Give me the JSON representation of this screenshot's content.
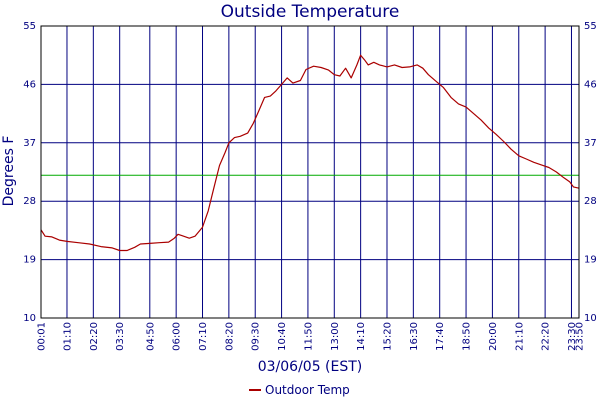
{
  "chart_data": {
    "type": "line",
    "title": "Outside Temperature",
    "xlabel": "03/06/05 (EST)",
    "ylabel": "Degrees F",
    "ylim": [
      10,
      55
    ],
    "yticks": [
      10,
      19,
      28,
      37,
      46,
      55
    ],
    "xlim_minutes": [
      1,
      1430
    ],
    "xticks": [
      {
        "label": "00:01",
        "minutes": 1
      },
      {
        "label": "01:10",
        "minutes": 70
      },
      {
        "label": "02:20",
        "minutes": 140
      },
      {
        "label": "03:30",
        "minutes": 210
      },
      {
        "label": "04:50",
        "minutes": 290
      },
      {
        "label": "06:00",
        "minutes": 360
      },
      {
        "label": "07:10",
        "minutes": 430
      },
      {
        "label": "08:20",
        "minutes": 500
      },
      {
        "label": "09:30",
        "minutes": 570
      },
      {
        "label": "10:40",
        "minutes": 640
      },
      {
        "label": "11:50",
        "minutes": 710
      },
      {
        "label": "13:00",
        "minutes": 780
      },
      {
        "label": "14:10",
        "minutes": 850
      },
      {
        "label": "15:20",
        "minutes": 920
      },
      {
        "label": "16:30",
        "minutes": 990
      },
      {
        "label": "17:40",
        "minutes": 1060
      },
      {
        "label": "18:50",
        "minutes": 1130
      },
      {
        "label": "20:00",
        "minutes": 1200
      },
      {
        "label": "21:10",
        "minutes": 1270
      },
      {
        "label": "22:20",
        "minutes": 1340
      },
      {
        "label": "23:30",
        "minutes": 1410
      },
      {
        "label": "23:50",
        "minutes": 1430
      }
    ],
    "reference_line": {
      "y": 32,
      "color": "#00aa00"
    },
    "grid": true,
    "legend_position": "bottom",
    "series": [
      {
        "name": "Outdoor Temp",
        "color": "#aa0000",
        "points": [
          [
            1,
            23.6
          ],
          [
            12,
            22.6
          ],
          [
            30,
            22.5
          ],
          [
            50,
            22.0
          ],
          [
            70,
            21.8
          ],
          [
            100,
            21.6
          ],
          [
            130,
            21.4
          ],
          [
            160,
            21.0
          ],
          [
            190,
            20.8
          ],
          [
            210,
            20.4
          ],
          [
            230,
            20.4
          ],
          [
            250,
            20.9
          ],
          [
            265,
            21.4
          ],
          [
            290,
            21.5
          ],
          [
            315,
            21.6
          ],
          [
            340,
            21.7
          ],
          [
            355,
            22.3
          ],
          [
            365,
            22.9
          ],
          [
            375,
            22.7
          ],
          [
            395,
            22.3
          ],
          [
            410,
            22.6
          ],
          [
            430,
            24.0
          ],
          [
            445,
            26.5
          ],
          [
            460,
            30.0
          ],
          [
            475,
            33.5
          ],
          [
            490,
            35.5
          ],
          [
            500,
            37.0
          ],
          [
            515,
            37.8
          ],
          [
            530,
            38.0
          ],
          [
            550,
            38.5
          ],
          [
            565,
            40.0
          ],
          [
            580,
            42.0
          ],
          [
            595,
            44.0
          ],
          [
            610,
            44.2
          ],
          [
            625,
            45.0
          ],
          [
            640,
            46.0
          ],
          [
            655,
            47.0
          ],
          [
            670,
            46.2
          ],
          [
            690,
            46.6
          ],
          [
            705,
            48.3
          ],
          [
            725,
            48.8
          ],
          [
            745,
            48.6
          ],
          [
            765,
            48.2
          ],
          [
            780,
            47.5
          ],
          [
            795,
            47.3
          ],
          [
            810,
            48.5
          ],
          [
            825,
            47.0
          ],
          [
            840,
            49.0
          ],
          [
            850,
            50.5
          ],
          [
            860,
            49.8
          ],
          [
            870,
            49.0
          ],
          [
            885,
            49.4
          ],
          [
            900,
            49.0
          ],
          [
            920,
            48.7
          ],
          [
            940,
            49.0
          ],
          [
            960,
            48.6
          ],
          [
            980,
            48.7
          ],
          [
            1000,
            49.0
          ],
          [
            1015,
            48.5
          ],
          [
            1030,
            47.5
          ],
          [
            1050,
            46.5
          ],
          [
            1070,
            45.5
          ],
          [
            1090,
            44.0
          ],
          [
            1110,
            43.0
          ],
          [
            1130,
            42.5
          ],
          [
            1150,
            41.5
          ],
          [
            1170,
            40.5
          ],
          [
            1190,
            39.3
          ],
          [
            1210,
            38.3
          ],
          [
            1230,
            37.2
          ],
          [
            1250,
            36.0
          ],
          [
            1270,
            35.0
          ],
          [
            1290,
            34.5
          ],
          [
            1310,
            34.0
          ],
          [
            1330,
            33.6
          ],
          [
            1350,
            33.2
          ],
          [
            1370,
            32.5
          ],
          [
            1390,
            31.6
          ],
          [
            1405,
            31.0
          ],
          [
            1415,
            30.2
          ],
          [
            1430,
            30.0
          ]
        ]
      }
    ]
  }
}
